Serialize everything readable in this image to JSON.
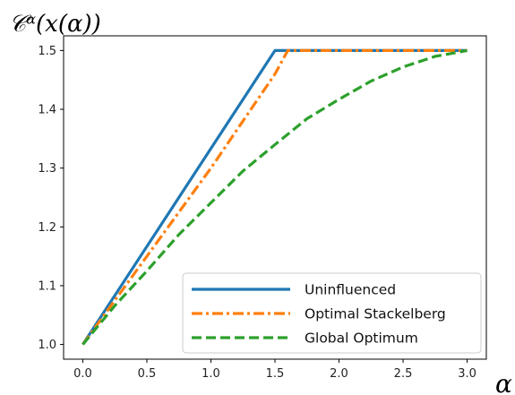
{
  "chart_data": {
    "type": "line",
    "ylabel_text": "𝒞ᵅ(x(α))",
    "xlabel_text": "α",
    "xlim": [
      -0.15,
      3.15
    ],
    "ylim": [
      0.975,
      1.525
    ],
    "xticks": [
      "0.0",
      "0.5",
      "1.0",
      "1.5",
      "2.0",
      "2.5",
      "3.0"
    ],
    "yticks": [
      "1.0",
      "1.1",
      "1.2",
      "1.3",
      "1.4",
      "1.5"
    ],
    "grid": false,
    "legend_position": "lower-right",
    "series": [
      {
        "name": "Uninfluenced",
        "color": "#1f77b4",
        "style": "solid",
        "points": [
          [
            0.0,
            1.0
          ],
          [
            1.5,
            1.5
          ],
          [
            3.0,
            1.5
          ]
        ]
      },
      {
        "name": "Optimal Stackelberg",
        "color": "#ff7f0e",
        "style": "dashdot",
        "points": [
          [
            0.0,
            1.0
          ],
          [
            0.25,
            1.075
          ],
          [
            0.5,
            1.15
          ],
          [
            0.75,
            1.225
          ],
          [
            1.0,
            1.3
          ],
          [
            1.25,
            1.38
          ],
          [
            1.5,
            1.46
          ],
          [
            1.6,
            1.5
          ],
          [
            2.0,
            1.5
          ],
          [
            2.5,
            1.5
          ],
          [
            3.0,
            1.5
          ]
        ]
      },
      {
        "name": "Global Optimum",
        "color": "#2ca02c",
        "style": "dashed",
        "points": [
          [
            0.0,
            1.0
          ],
          [
            0.25,
            1.066
          ],
          [
            0.5,
            1.125
          ],
          [
            0.75,
            1.187
          ],
          [
            1.0,
            1.241
          ],
          [
            1.25,
            1.295
          ],
          [
            1.5,
            1.34
          ],
          [
            1.75,
            1.384
          ],
          [
            2.0,
            1.417
          ],
          [
            2.25,
            1.448
          ],
          [
            2.5,
            1.472
          ],
          [
            2.75,
            1.49
          ],
          [
            3.0,
            1.5
          ]
        ]
      }
    ]
  }
}
